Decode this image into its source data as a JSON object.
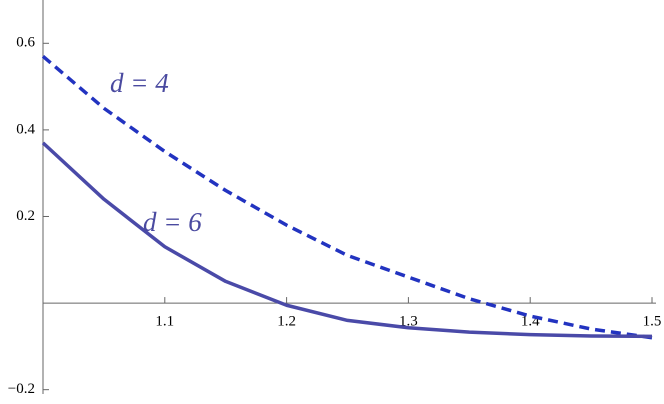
{
  "chart_data": {
    "type": "line",
    "x": [
      1.0,
      1.05,
      1.1,
      1.15,
      1.2,
      1.25,
      1.3,
      1.35,
      1.4,
      1.45,
      1.5
    ],
    "series": [
      {
        "name": "d = 4",
        "color": "#2233c0",
        "dash": true,
        "values": [
          0.57,
          0.45,
          0.35,
          0.26,
          0.18,
          0.11,
          0.06,
          0.01,
          -0.03,
          -0.06,
          -0.08
        ]
      },
      {
        "name": "d = 6",
        "color": "#4a4aa8",
        "dash": false,
        "values": [
          0.37,
          0.24,
          0.13,
          0.05,
          -0.005,
          -0.04,
          -0.057,
          -0.067,
          -0.073,
          -0.076,
          -0.077
        ]
      }
    ],
    "xlim": [
      1.0,
      1.5
    ],
    "xticks": [
      1.1,
      1.2,
      1.3,
      1.4,
      1.5
    ],
    "ylim": [
      -0.21,
      0.7
    ],
    "yticks": [
      {
        "value": -0.2,
        "label": "−0.2"
      },
      0.2,
      0.4,
      0.6
    ]
  }
}
